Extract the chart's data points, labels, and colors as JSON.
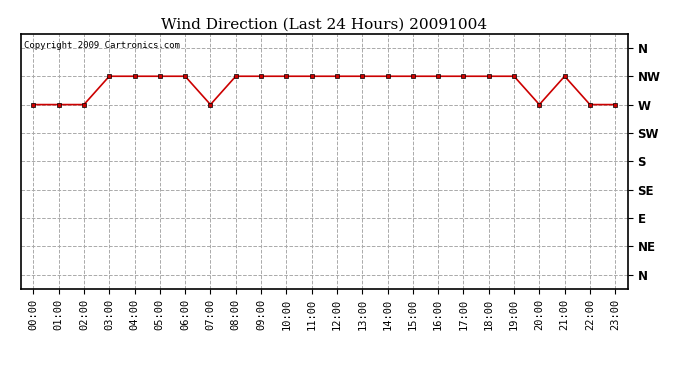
{
  "title": "Wind Direction (Last 24 Hours) 20091004",
  "copyright": "Copyright 2009 Cartronics.com",
  "x_labels": [
    "00:00",
    "01:00",
    "02:00",
    "03:00",
    "04:00",
    "05:00",
    "06:00",
    "07:00",
    "08:00",
    "09:00",
    "10:00",
    "11:00",
    "12:00",
    "13:00",
    "14:00",
    "15:00",
    "16:00",
    "17:00",
    "18:00",
    "19:00",
    "20:00",
    "21:00",
    "22:00",
    "23:00"
  ],
  "y_ticks": [
    8,
    7,
    6,
    5,
    4,
    3,
    2,
    1,
    0
  ],
  "y_labels": [
    "N",
    "NW",
    "W",
    "SW",
    "S",
    "SE",
    "E",
    "NE",
    "N"
  ],
  "wind_values": [
    6,
    6,
    6,
    7,
    7,
    7,
    7,
    6,
    7,
    7,
    7,
    7,
    7,
    7,
    7,
    7,
    7,
    7,
    7,
    7,
    6,
    7,
    6,
    6
  ],
  "line_color": "#cc0000",
  "marker": "s",
  "marker_size": 3,
  "bg_color": "#ffffff",
  "plot_bg_color": "#ffffff",
  "grid_color": "#aaaaaa",
  "grid_style": "--",
  "border_color": "#000000",
  "title_fontsize": 11,
  "tick_fontsize": 7.5,
  "copyright_fontsize": 6.5
}
